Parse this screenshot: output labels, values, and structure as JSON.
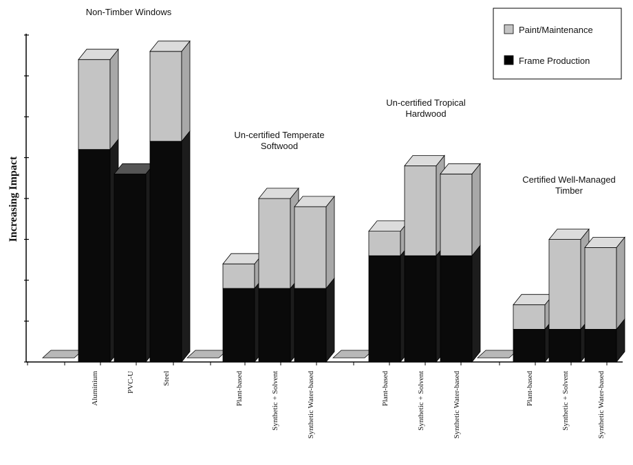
{
  "chart_data": {
    "type": "bar",
    "stacked": true,
    "style": "3d",
    "ylabel": "Increasing Impact",
    "ylim": [
      0,
      8
    ],
    "y_ticks": [
      0,
      1,
      2,
      3,
      4,
      5,
      6,
      7,
      8
    ],
    "y_tick_labels_shown": false,
    "grid": false,
    "legend": {
      "position": "top-right",
      "entries": [
        {
          "name": "Paint/Maintenance",
          "color": "#c4c4c4"
        },
        {
          "name": "Frame Production",
          "color": "#000000"
        }
      ]
    },
    "groups": [
      {
        "label": "Non-Timber Windows",
        "slots": [
          "",
          "Aluminium",
          "PVC-U",
          "Steel"
        ]
      },
      {
        "label": "Un-certified Temperate Softwood",
        "slots": [
          "",
          "Plant-based",
          "Synthetic + Solvent",
          "Synthetic Water-based"
        ]
      },
      {
        "label": "Un-certified Tropical Hardwood",
        "slots": [
          "",
          "Plant-based",
          "Synthetic + Solvent",
          "Synthetic Water-based"
        ]
      },
      {
        "label": "Certified Well-Managed Timber",
        "slots": [
          "",
          "Plant-based",
          "Synthetic + Solvent",
          "Synthetic Water-based"
        ]
      }
    ],
    "categories": [
      "",
      "Aluminium",
      "PVC-U",
      "Steel",
      "",
      "Plant-based",
      "Synthetic + Solvent",
      "Synthetic Water-based",
      "",
      "Plant-based",
      "Synthetic + Solvent",
      "Synthetic Water-based",
      "",
      "Plant-based",
      "Synthetic + Solvent",
      "Synthetic Water-based"
    ],
    "series": [
      {
        "name": "Frame Production",
        "values": [
          0,
          5.2,
          4.6,
          5.4,
          0,
          1.8,
          1.8,
          1.8,
          0,
          2.6,
          2.6,
          2.6,
          0,
          0.8,
          0.8,
          0.8
        ]
      },
      {
        "name": "Paint/Maintenance",
        "values": [
          0,
          2.2,
          0,
          2.2,
          0,
          0.6,
          2.2,
          2.0,
          0,
          0.6,
          2.2,
          2.0,
          0,
          0.6,
          2.2,
          2.0
        ]
      }
    ]
  },
  "colors": {
    "paint": "#c4c4c4",
    "paint_top": "#dcdcdc",
    "paint_side": "#a8a8a8",
    "frame": "#0a0a0a",
    "frame_top": "#555555",
    "frame_side": "#1c1c1c",
    "empty": "#b8b8b8",
    "axis": "#000000"
  }
}
